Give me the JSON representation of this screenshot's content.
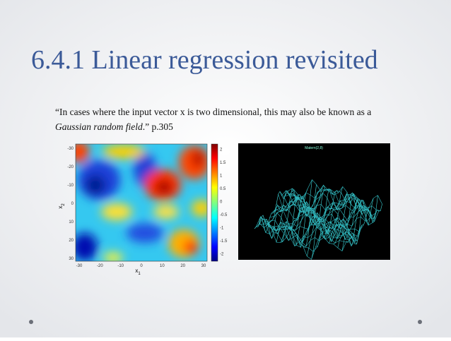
{
  "slide": {
    "title": "6.4.1 Linear regression revisited",
    "quote": {
      "line1": "“In cases where the input vector x is two dimensional, this may also be known as a",
      "italic": "Gaussian random field",
      "after": ".” p.305"
    },
    "heatmap": {
      "xticks": [
        "-30",
        "-20",
        "-10",
        "0",
        "10",
        "20",
        "30"
      ],
      "yticks": [
        "-30",
        "-20",
        "-10",
        "0",
        "10",
        "20",
        "30"
      ],
      "xlabel": {
        "base": "x",
        "sub": "1"
      },
      "ylabel": {
        "base": "x",
        "sub": "2"
      },
      "colorbar_ticks": [
        "2",
        "1.5",
        "1",
        "0.5",
        "0",
        "-0.5",
        "-1",
        "-1.5",
        "-2"
      ]
    },
    "surface": {
      "title": "Matern(2,8)"
    }
  }
}
